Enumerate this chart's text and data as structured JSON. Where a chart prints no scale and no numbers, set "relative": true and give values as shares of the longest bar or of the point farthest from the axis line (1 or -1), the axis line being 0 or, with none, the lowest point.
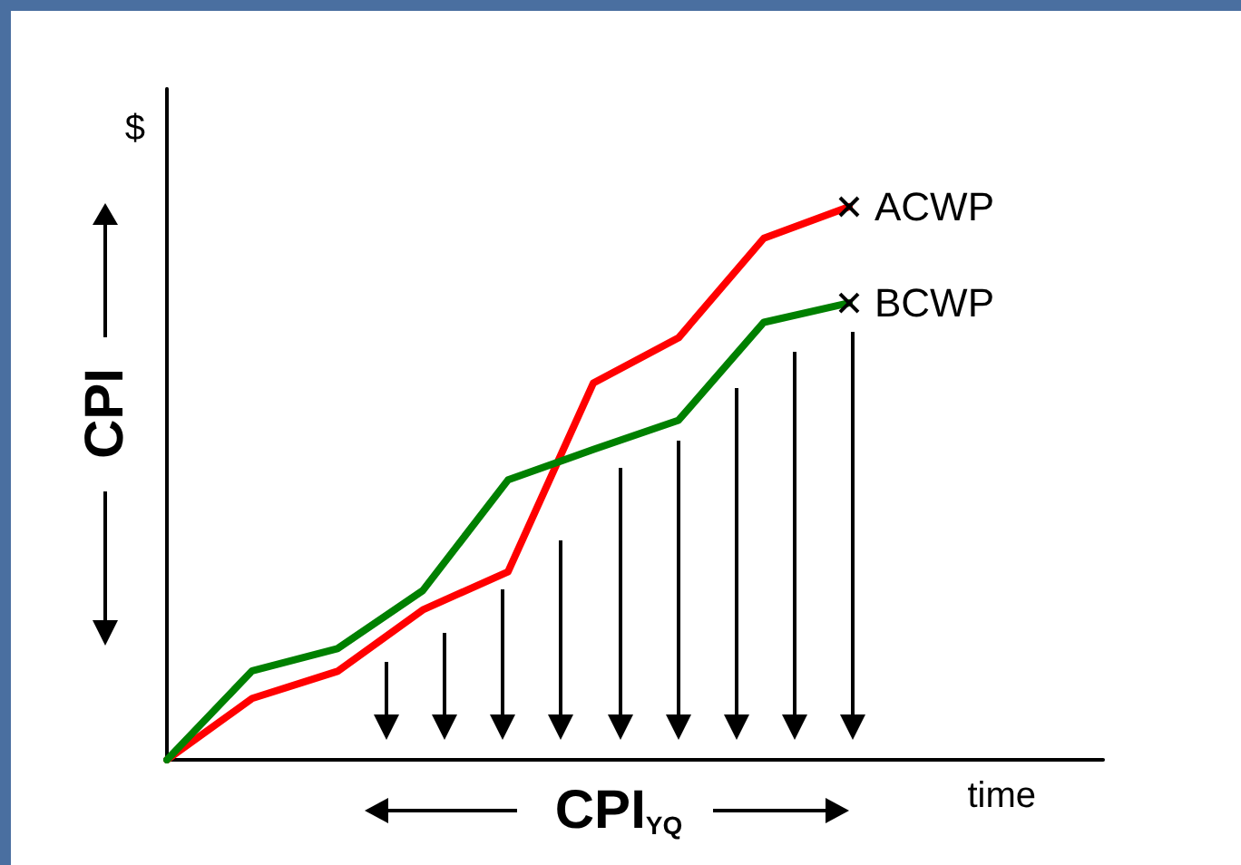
{
  "chart_data": {
    "type": "line",
    "relative": true,
    "xlabel": "time",
    "ylabel": "$",
    "categories": [
      null,
      null,
      null,
      null,
      null,
      null,
      null,
      null,
      null
    ],
    "series": [
      {
        "name": "ACWP",
        "color": "#ff0000",
        "values": [
          0,
          0.111,
          0.16,
          0.271,
          0.34,
          0.681,
          0.763,
          0.943,
          1
        ]
      },
      {
        "name": "BCWP",
        "color": "#008000",
        "values": [
          0,
          0.161,
          0.201,
          0.306,
          0.506,
          0.561,
          0.614,
          0.791,
          0.826
        ]
      }
    ],
    "annotations": [
      "CPI",
      "CPI$_{YQ}$"
    ],
    "legend": false,
    "grid": false
  }
}
